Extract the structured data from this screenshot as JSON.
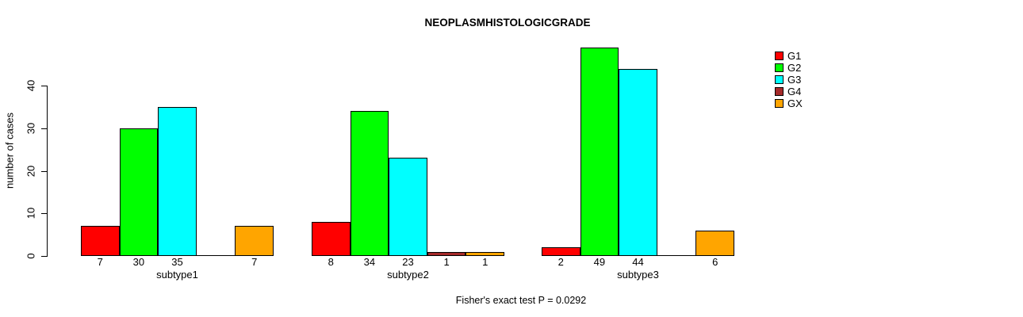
{
  "chart_data": {
    "type": "bar",
    "title": "NEOPLASMHISTOLOGICGRADE",
    "ylabel": "number of cases",
    "xlabel": "",
    "categories": [
      "subtype1",
      "subtype2",
      "subtype3"
    ],
    "series": [
      {
        "name": "G1",
        "color": "#FF0000",
        "values": [
          7,
          8,
          2
        ]
      },
      {
        "name": "G2",
        "color": "#00FF00",
        "values": [
          30,
          34,
          49
        ]
      },
      {
        "name": "G3",
        "color": "#00FFFF",
        "values": [
          35,
          23,
          44
        ]
      },
      {
        "name": "G4",
        "color": "#A52A2A",
        "values": [
          0,
          1,
          0
        ]
      },
      {
        "name": "GX",
        "color": "#FFA500",
        "values": [
          7,
          1,
          6
        ]
      }
    ],
    "bar_value_labels": {
      "subtype1": [
        "7",
        "30",
        "35",
        "",
        "7"
      ],
      "subtype2": [
        "8",
        "34",
        "23",
        "1",
        "1"
      ],
      "subtype3": [
        "2",
        "49",
        "44",
        "",
        "6"
      ]
    },
    "yticks": [
      0,
      10,
      20,
      30,
      40
    ],
    "ylim": [
      0,
      52
    ],
    "grid": false,
    "legend_position": "right",
    "annotation": "Fisher's exact test P = 0.0292"
  }
}
